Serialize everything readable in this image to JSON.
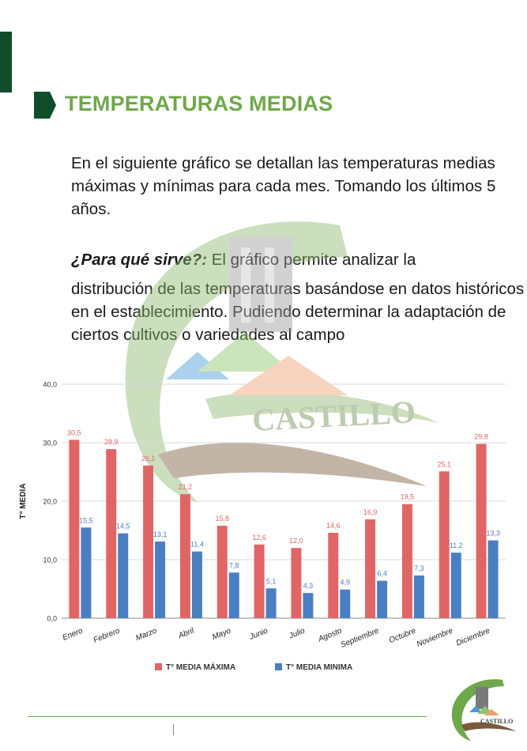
{
  "page": {
    "title": "TEMPERATURAS MEDIAS",
    "intro": "En el siguiente gráfico se detallan las temperaturas medias máximas y mínimas para cada mes. Tomando los últimos 5 años.",
    "purpose_question": "¿Para qué sirve?:",
    "purpose_text_1": "El gráfico permite analizar la",
    "purpose_text_2": "distribución de las temperaturas basándose en datos históricos en el establecimiento. Pudiendo determinar la adaptación de ciertos cultivos o variedades al campo",
    "watermark_text": "CASTILLO",
    "logo_text": "CASTILLO"
  },
  "colors": {
    "title_green": "#6ea84a",
    "dark_green": "#0f4d2b",
    "max_series": "#e06666",
    "min_series": "#4a7fc1"
  },
  "chart_data": {
    "type": "bar",
    "ylabel": "T° MEDIA",
    "ylim": [
      0,
      40
    ],
    "yticks": [
      "0,0",
      "10,0",
      "20,0",
      "30,0",
      "40,0"
    ],
    "grid": true,
    "legend_position": "bottom",
    "categories": [
      "Enero",
      "Febrero",
      "Marzo",
      "Abril",
      "Mayo",
      "Junio",
      "Julio",
      "Agosto",
      "Septiembre",
      "Octubre",
      "Noviembre",
      "Diciembre"
    ],
    "series": [
      {
        "name": "T° MEDIA MÁXIMA",
        "color": "#e06666",
        "values": [
          30.5,
          28.9,
          26.1,
          21.2,
          15.8,
          12.6,
          12.0,
          14.6,
          16.9,
          19.5,
          25.1,
          29.8
        ],
        "labels": [
          "30,5",
          "28,9",
          "26,1",
          "21,2",
          "15,8",
          "12,6",
          "12,0",
          "14,6",
          "16,9",
          "19,5",
          "25,1",
          "29,8"
        ]
      },
      {
        "name": "T° MEDIA MINIMA",
        "color": "#4a7fc1",
        "values": [
          15.5,
          14.5,
          13.1,
          11.4,
          7.8,
          5.1,
          4.3,
          4.9,
          6.4,
          7.3,
          11.2,
          13.3
        ],
        "labels": [
          "15,5",
          "14,5",
          "13,1",
          "11,4",
          "7,8",
          "5,1",
          "4,3",
          "4,9",
          "6,4",
          "7,3",
          "11,2",
          "13,3"
        ]
      }
    ]
  }
}
